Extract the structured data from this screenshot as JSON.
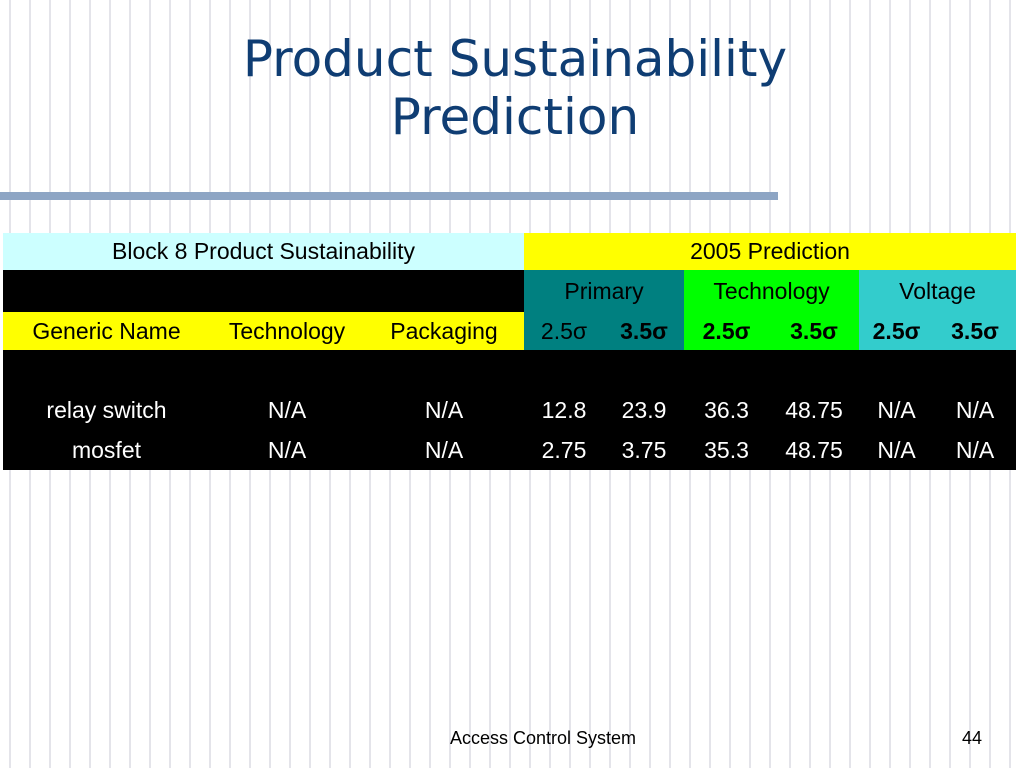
{
  "slide": {
    "title_line1": "Product Sustainability",
    "title_line2": "Prediction",
    "footer": "Access Control System",
    "page_number": "44"
  },
  "table": {
    "header_left": "Block 8 Product Sustainability",
    "header_right": "2005 Prediction",
    "groups": [
      "Primary",
      "Technology",
      "Voltage"
    ],
    "columns": [
      "Generic Name",
      "Technology",
      "Packaging",
      "2.5σ",
      "3.5σ",
      "2.5σ",
      "3.5σ",
      "2.5σ",
      "3.5σ"
    ],
    "rows": [
      [
        "relay switch",
        "N/A",
        "N/A",
        "12.8",
        "23.9",
        "36.3",
        "48.75",
        "N/A",
        "N/A"
      ],
      [
        "mosfet",
        "N/A",
        "N/A",
        "2.75",
        "3.75",
        "35.3",
        "48.75",
        "N/A",
        "N/A"
      ]
    ]
  },
  "colors": {
    "title": "#0f3d73",
    "header_left_bg": "#ccffff",
    "header_right_bg": "#ffff00",
    "primary_bg": "#008080",
    "technology_bg": "#00ff00",
    "voltage_bg": "#33cccc",
    "body_bg": "#000000"
  }
}
